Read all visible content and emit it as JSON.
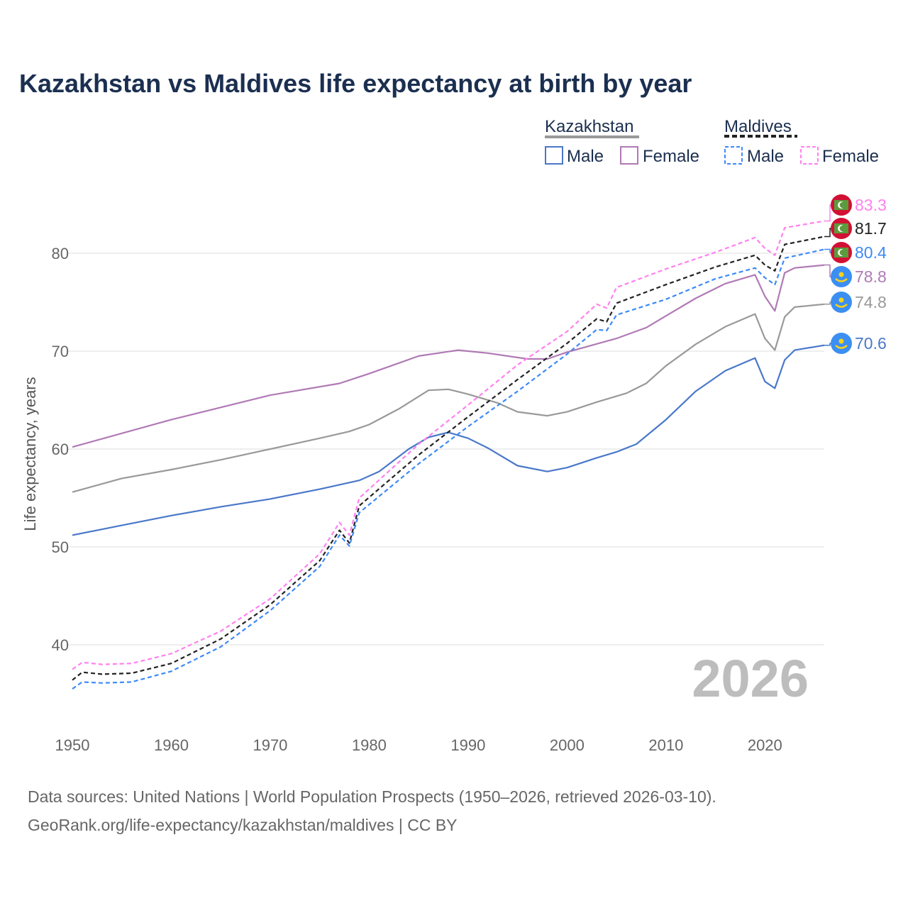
{
  "chart_data": {
    "type": "line",
    "title": "Kazakhstan vs Maldives life expectancy at birth by year",
    "xlabel": "",
    "ylabel": "Life expectancy, years",
    "xlim": [
      1950,
      2026
    ],
    "ylim": [
      32,
      88
    ],
    "x_ticks": [
      "1950",
      "1960",
      "1970",
      "1980",
      "1990",
      "2000",
      "2010",
      "2020"
    ],
    "y_ticks": [
      "40",
      "50",
      "60",
      "70",
      "80"
    ],
    "grid": true,
    "year_watermark": "2026",
    "legend": {
      "placement": "top-right",
      "groups": [
        {
          "name": "Kazakhstan",
          "items": [
            "Male",
            "Female"
          ]
        },
        {
          "name": "Maldives",
          "items": [
            "Male",
            "Female"
          ]
        }
      ]
    },
    "series": [
      {
        "name": "Kazakhstan",
        "country": "Kazakhstan",
        "sex": "Total",
        "color": "#999999",
        "dashed": false,
        "end_label": "74.8",
        "x": [
          1950,
          1955,
          1960,
          1965,
          1970,
          1975,
          1978,
          1980,
          1983,
          1986,
          1988,
          1990,
          1993,
          1995,
          1998,
          2000,
          2003,
          2006,
          2008,
          2010,
          2013,
          2016,
          2019,
          2020,
          2021,
          2022,
          2023,
          2026
        ],
        "y": [
          55.6,
          57.0,
          57.9,
          58.9,
          60.0,
          61.1,
          61.8,
          62.5,
          64.1,
          66.0,
          66.1,
          65.6,
          64.7,
          63.8,
          63.4,
          63.8,
          64.8,
          65.7,
          66.7,
          68.5,
          70.7,
          72.5,
          73.8,
          71.3,
          70.1,
          73.5,
          74.5,
          74.8
        ]
      },
      {
        "name": "Kazakhstan Male",
        "country": "Kazakhstan",
        "sex": "Male",
        "color": "#4a78c9",
        "dashed": false,
        "end_label": "70.6",
        "x": [
          1950,
          1955,
          1960,
          1965,
          1970,
          1975,
          1979,
          1981,
          1984,
          1986,
          1988,
          1990,
          1992,
          1995,
          1998,
          2000,
          2003,
          2005,
          2007,
          2010,
          2013,
          2016,
          2019,
          2020,
          2021,
          2022,
          2023,
          2026
        ],
        "y": [
          51.2,
          52.2,
          53.2,
          54.1,
          54.9,
          55.9,
          56.8,
          57.7,
          60.0,
          61.2,
          61.7,
          61.1,
          60.1,
          58.3,
          57.7,
          58.1,
          59.1,
          59.7,
          60.5,
          63.0,
          65.9,
          68.0,
          69.3,
          66.9,
          66.2,
          69.1,
          70.1,
          70.6
        ]
      },
      {
        "name": "Kazakhstan Female",
        "country": "Kazakhstan",
        "sex": "Female",
        "color": "#b07ab5",
        "dashed": false,
        "end_label": "78.8",
        "x": [
          1950,
          1960,
          1970,
          1977,
          1980,
          1985,
          1989,
          1992,
          1996,
          1998,
          2000,
          2005,
          2008,
          2010,
          2013,
          2016,
          2019,
          2020,
          2021,
          2022,
          2023,
          2026
        ],
        "y": [
          60.2,
          63.0,
          65.5,
          66.7,
          67.7,
          69.5,
          70.1,
          69.8,
          69.2,
          69.2,
          69.9,
          71.3,
          72.4,
          73.6,
          75.4,
          76.9,
          77.8,
          75.6,
          74.1,
          78.0,
          78.5,
          78.8
        ]
      },
      {
        "name": "Maldives",
        "country": "Maldives",
        "sex": "Total",
        "color": "#222222",
        "dashed": true,
        "end_label": "81.7",
        "x": [
          1950,
          1951,
          1953,
          1956,
          1960,
          1965,
          1970,
          1975,
          1977,
          1978,
          1979,
          1985,
          1990,
          1995,
          2000,
          2003,
          2004,
          2005,
          2010,
          2015,
          2019,
          2020,
          2021,
          2022,
          2026
        ],
        "y": [
          36.4,
          37.2,
          37.0,
          37.1,
          38.1,
          40.6,
          44.1,
          48.6,
          51.7,
          50.4,
          54.2,
          59.4,
          63.3,
          67.1,
          70.8,
          73.3,
          73.0,
          74.9,
          76.8,
          78.6,
          79.8,
          78.8,
          78.2,
          80.9,
          81.7
        ]
      },
      {
        "name": "Maldives Male",
        "country": "Maldives",
        "sex": "Male",
        "color": "#3d8af7",
        "dashed": true,
        "end_label": "80.4",
        "x": [
          1950,
          1951,
          1953,
          1956,
          1960,
          1965,
          1970,
          1975,
          1977,
          1978,
          1979,
          1985,
          1990,
          1995,
          2000,
          2003,
          2004,
          2005,
          2010,
          2015,
          2019,
          2020,
          2021,
          2022,
          2026
        ],
        "y": [
          35.5,
          36.2,
          36.1,
          36.2,
          37.3,
          39.8,
          43.5,
          48.0,
          51.2,
          50.1,
          53.5,
          58.5,
          62.3,
          65.9,
          69.7,
          72.2,
          72.1,
          73.7,
          75.3,
          77.4,
          78.5,
          77.5,
          76.8,
          79.5,
          80.4
        ]
      },
      {
        "name": "Maldives Female",
        "country": "Maldives",
        "sex": "Female",
        "color": "#ff80f0",
        "dashed": true,
        "end_label": "83.3",
        "x": [
          1950,
          1951,
          1953,
          1956,
          1960,
          1965,
          1970,
          1975,
          1977,
          1978,
          1979,
          1985,
          1990,
          1995,
          2000,
          2003,
          2004,
          2005,
          2010,
          2015,
          2019,
          2020,
          2021,
          2022,
          2026
        ],
        "y": [
          37.5,
          38.2,
          38.0,
          38.1,
          39.1,
          41.4,
          44.7,
          49.3,
          52.5,
          51.2,
          55.0,
          60.5,
          64.5,
          68.6,
          72.0,
          74.8,
          74.4,
          76.5,
          78.4,
          80.1,
          81.6,
          80.5,
          79.8,
          82.6,
          83.3
        ]
      }
    ],
    "footer": [
      "Data sources: United Nations | World Population Prospects (1950–2026, retrieved 2026-03-10).",
      "GeoRank.org/life-expectancy/kazakhstan/maldives | CC BY"
    ]
  }
}
